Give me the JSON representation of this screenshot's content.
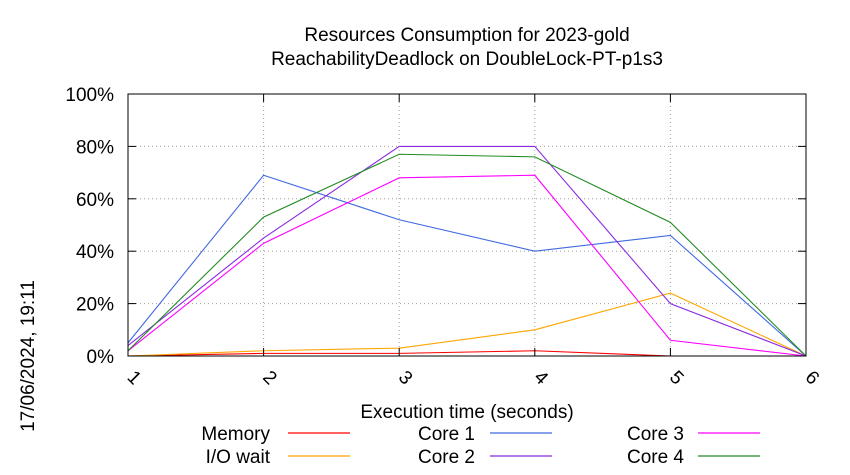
{
  "chart_data": {
    "type": "line",
    "title": "Resources Consumption for 2023-gold",
    "subtitle": "ReachabilityDeadlock on DoubleLock-PT-p1s3",
    "xlabel": "Execution time (seconds)",
    "ylabel": "",
    "x": [
      1,
      2,
      3,
      4,
      5,
      6
    ],
    "xlim": [
      1,
      6
    ],
    "ylim": [
      0,
      100
    ],
    "x_ticks": [
      "1",
      "2",
      "3",
      "4",
      "5",
      "6"
    ],
    "y_ticks": [
      "0%",
      "20%",
      "40%",
      "60%",
      "80%",
      "100%"
    ],
    "y_tick_values": [
      0,
      20,
      40,
      60,
      80,
      100
    ],
    "grid": true,
    "legend_position": "bottom",
    "series": [
      {
        "name": "Memory",
        "color": "#ff0000",
        "values": [
          0,
          1,
          1,
          2,
          0,
          0
        ]
      },
      {
        "name": "I/O wait",
        "color": "#ffa500",
        "values": [
          0,
          2,
          3,
          10,
          24,
          0
        ]
      },
      {
        "name": "Core 1",
        "color": "#4169e1",
        "values": [
          5,
          69,
          52,
          40,
          46,
          0
        ]
      },
      {
        "name": "Core 2",
        "color": "#8a2be2",
        "values": [
          4,
          45,
          80,
          80,
          20,
          0
        ]
      },
      {
        "name": "Core 3",
        "color": "#ff00ff",
        "values": [
          2,
          43,
          68,
          69,
          6,
          0
        ]
      },
      {
        "name": "Core 4",
        "color": "#228b22",
        "values": [
          2,
          53,
          77,
          76,
          51,
          0
        ]
      }
    ],
    "timestamp": "17/06/2024, 19:11"
  }
}
